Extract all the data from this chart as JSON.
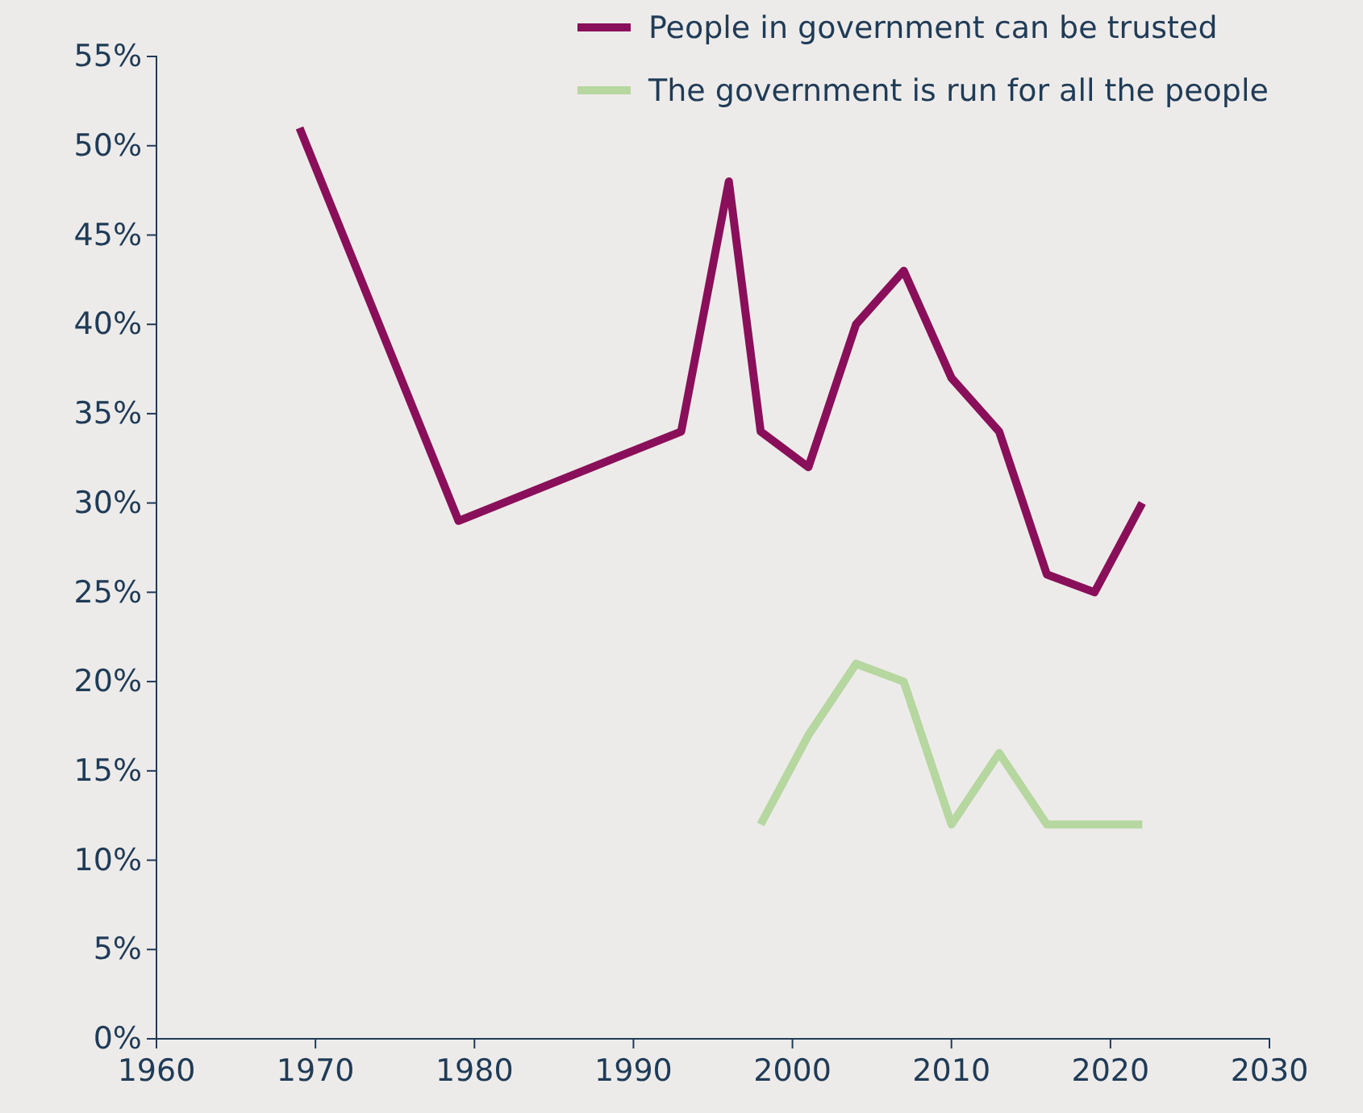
{
  "chart_data": {
    "type": "line",
    "x": [
      1969,
      1979,
      1993,
      1996,
      1998,
      2001,
      2004,
      2007,
      2010,
      2013,
      2016,
      2019,
      2022
    ],
    "series": [
      {
        "name": "People in government can be trusted",
        "color": "#8a0f5a",
        "values": [
          51,
          29,
          34,
          48,
          34,
          32,
          40,
          43,
          37,
          34,
          26,
          25,
          30
        ]
      },
      {
        "name": "The government is run for all the people",
        "color": "#b6d7a0",
        "x": [
          1998,
          2001,
          2004,
          2007,
          2010,
          2013,
          2016,
          2019,
          2022
        ],
        "values": [
          12,
          17,
          21,
          20,
          12,
          16,
          12,
          12,
          12
        ]
      }
    ],
    "xlim": [
      1960,
      2030
    ],
    "xticks": [
      1960,
      1970,
      1980,
      1990,
      2000,
      2010,
      2020,
      2030
    ],
    "ylim": [
      0,
      55
    ],
    "yticks": [
      {
        "value": 0,
        "label": "0%"
      },
      {
        "value": 5,
        "label": "5%"
      },
      {
        "value": 10,
        "label": "10%"
      },
      {
        "value": 15,
        "label": "15%"
      },
      {
        "value": 20,
        "label": "20%"
      },
      {
        "value": 25,
        "label": "25%"
      },
      {
        "value": 30,
        "label": "30%"
      },
      {
        "value": 35,
        "label": "35%"
      },
      {
        "value": 40,
        "label": "40%"
      },
      {
        "value": 45,
        "label": "45%"
      },
      {
        "value": 50,
        "label": "50%"
      },
      {
        "value": 55,
        "label": "55%"
      }
    ],
    "grid": false,
    "legend": "top right",
    "marker": "none",
    "line_style": "solid"
  }
}
